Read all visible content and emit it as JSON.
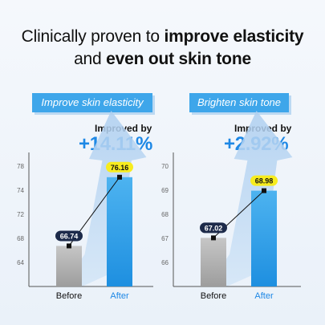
{
  "headline": {
    "line1_normal": "Clinically proven to ",
    "line1_bold": "improve elasticity",
    "line2_normal": "and ",
    "line2_bold": "even out skin tone"
  },
  "colors": {
    "accent": "#3ea6ea",
    "after_bar": "#3ea6ea",
    "before_bar": "#b8b8b8",
    "before_badge": "#1c2a4a",
    "after_badge": "#f7ec1e",
    "stat_value": "#1e88e5"
  },
  "chart_data": [
    {
      "type": "bar",
      "title": "Improve skin elasticity",
      "improvement_label": "Improved by",
      "improvement_value": "+14.11%",
      "categories": [
        "Before",
        "After"
      ],
      "values": [
        66.74,
        76.16
      ],
      "value_labels": [
        "66.74",
        "76.16"
      ],
      "yticks": [
        64,
        68,
        72,
        74,
        78
      ],
      "ytick_labels": [
        "64",
        "68",
        "72",
        "74",
        "78"
      ],
      "ylim": [
        62,
        80
      ]
    },
    {
      "type": "bar",
      "title": "Brighten skin tone",
      "improvement_label": "Improved by",
      "improvement_value": "+2.92%",
      "categories": [
        "Before",
        "After"
      ],
      "values": [
        67.02,
        68.98
      ],
      "value_labels": [
        "67.02",
        "68.98"
      ],
      "yticks": [
        66,
        67,
        68,
        69,
        70
      ],
      "ytick_labels": [
        "66",
        "67",
        "68",
        "69",
        "70"
      ],
      "ylim": [
        65,
        70.5
      ]
    }
  ]
}
